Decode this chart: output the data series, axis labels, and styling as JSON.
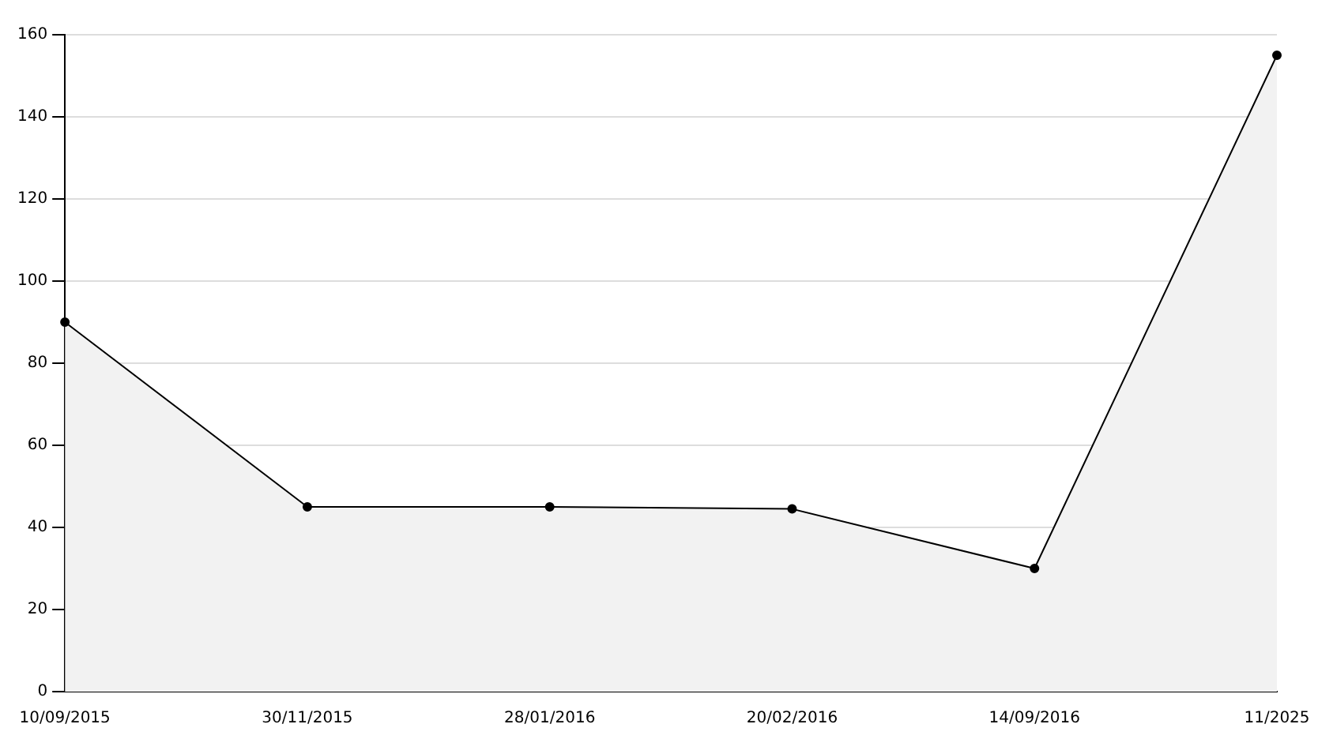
{
  "chart_data": {
    "type": "area",
    "categories": [
      "10/09/2015",
      "30/11/2015",
      "28/01/2016",
      "20/02/2016",
      "14/09/2016",
      "11/2025"
    ],
    "series": [
      {
        "color": "#000000",
        "values": [
          90,
          45,
          45,
          44.5,
          30,
          155
        ]
      }
    ],
    "ylim": [
      0,
      160
    ],
    "yticks": [
      0,
      20,
      40,
      60,
      80,
      100,
      120,
      140,
      160
    ],
    "grid": "y",
    "legend": false,
    "marker": "circle",
    "line_style": "solid"
  }
}
